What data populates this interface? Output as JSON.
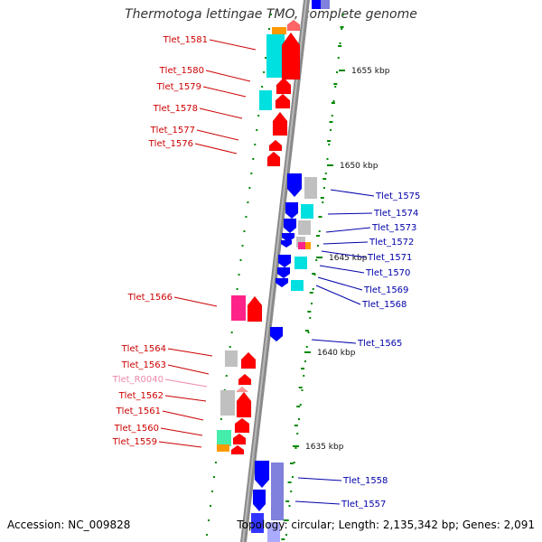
{
  "title": "Thermotoga lettingae TMO, complete genome",
  "footer": {
    "accession": "Accession: NC_009828",
    "stats": "Topology: circular; Length: 2,135,342 bp; Genes: 2,091"
  },
  "colors": {
    "strand_forward": "#ff0000",
    "strand_reverse": "#0000ff",
    "forward_label": "#cc0000",
    "reverse_label": "#0000aa",
    "rna_label": "#ee88aa",
    "cyan": "#00e0e0",
    "magenta": "#ff2288",
    "gray": "#c0c0c0",
    "orange": "#ff9900",
    "lavender": "#8080dd",
    "tick": "#008800",
    "backbone": "#888888"
  },
  "ruler": [
    {
      "label": "1655 kbp"
    },
    {
      "label": "1650 kbp"
    },
    {
      "label": "1645 kbp"
    },
    {
      "label": "1640 kbp"
    },
    {
      "label": "1635 kbp"
    }
  ],
  "genes_left": [
    {
      "name": "Tlet_1581"
    },
    {
      "name": "Tlet_1580"
    },
    {
      "name": "Tlet_1579"
    },
    {
      "name": "Tlet_1578"
    },
    {
      "name": "Tlet_1577"
    },
    {
      "name": "Tlet_1576"
    },
    {
      "name": "Tlet_1566"
    },
    {
      "name": "Tlet_1564"
    },
    {
      "name": "Tlet_1563"
    },
    {
      "name": "Tlet_R0040"
    },
    {
      "name": "Tlet_1562"
    },
    {
      "name": "Tlet_1561"
    },
    {
      "name": "Tlet_1560"
    },
    {
      "name": "Tlet_1559"
    }
  ],
  "genes_right": [
    {
      "name": "Tlet_1575"
    },
    {
      "name": "Tlet_1574"
    },
    {
      "name": "Tlet_1573"
    },
    {
      "name": "Tlet_1572"
    },
    {
      "name": "Tlet_1571"
    },
    {
      "name": "Tlet_1570"
    },
    {
      "name": "Tlet_1569"
    },
    {
      "name": "Tlet_1568"
    },
    {
      "name": "Tlet_1565"
    },
    {
      "name": "Tlet_1558"
    },
    {
      "name": "Tlet_1557"
    }
  ]
}
